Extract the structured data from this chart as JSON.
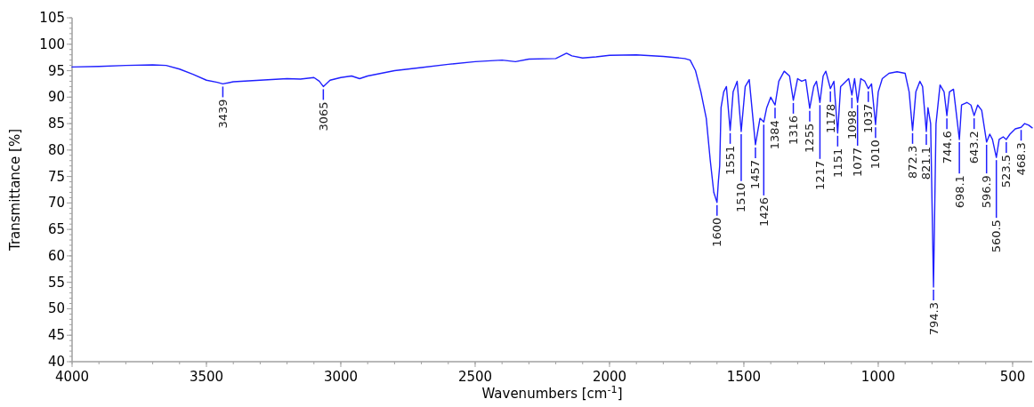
{
  "chart_data": {
    "type": "line",
    "xlabel": "Wavenumbers [cm$^{-1}$]",
    "ylabel": "Transmittance [%]",
    "xlim": [
      4000,
      427
    ],
    "xticks": [
      4000,
      3500,
      3000,
      2500,
      2000,
      1500,
      1000,
      500
    ],
    "ylim": [
      40,
      105
    ],
    "yticks": [
      40,
      45,
      50,
      55,
      60,
      65,
      70,
      75,
      80,
      85,
      90,
      95,
      100,
      105
    ],
    "grid": false,
    "marker": "none",
    "line_style": "solid",
    "series": [
      {
        "color": "#1f1fff",
        "x": [
          4000,
          3900,
          3800,
          3700,
          3650,
          3600,
          3550,
          3500,
          3460,
          3439,
          3400,
          3300,
          3200,
          3150,
          3100,
          3080,
          3065,
          3040,
          3000,
          2960,
          2930,
          2900,
          2800,
          2700,
          2600,
          2500,
          2400,
          2350,
          2300,
          2200,
          2160,
          2140,
          2100,
          2050,
          2000,
          1900,
          1800,
          1720,
          1700,
          1680,
          1660,
          1640,
          1625,
          1612,
          1600,
          1595,
          1590,
          1585,
          1575,
          1565,
          1551,
          1540,
          1525,
          1510,
          1495,
          1480,
          1457,
          1440,
          1426,
          1415,
          1400,
          1384,
          1370,
          1350,
          1330,
          1316,
          1300,
          1285,
          1270,
          1255,
          1240,
          1230,
          1217,
          1205,
          1195,
          1178,
          1165,
          1151,
          1140,
          1120,
          1110,
          1098,
          1088,
          1077,
          1065,
          1050,
          1037,
          1025,
          1010,
          1000,
          985,
          960,
          930,
          900,
          885,
          872.3,
          860,
          845,
          835,
          821.1,
          815,
          805,
          794.3,
          785,
          770,
          755,
          744.6,
          735,
          720,
          698.1,
          690,
          670,
          655,
          643.2,
          630,
          615,
          596.9,
          585,
          575,
          560.5,
          550,
          535,
          523.5,
          510,
          490,
          468.3,
          455,
          440,
          427
        ],
        "values": [
          95.7,
          95.8,
          96.0,
          96.1,
          96.0,
          95.3,
          94.3,
          93.2,
          92.8,
          92.5,
          92.9,
          93.2,
          93.5,
          93.4,
          93.7,
          93.0,
          92.0,
          93.2,
          93.7,
          94.0,
          93.5,
          94.0,
          95.0,
          95.6,
          96.2,
          96.7,
          97.0,
          96.7,
          97.2,
          97.3,
          98.3,
          97.8,
          97.4,
          97.6,
          97.9,
          98.0,
          97.7,
          97.3,
          97.0,
          95,
          91,
          86,
          78,
          72,
          70.1,
          74,
          77,
          88,
          91,
          92,
          83.7,
          91,
          93,
          83.5,
          92,
          93.3,
          81.0,
          86,
          85.3,
          88,
          90,
          88.5,
          93,
          94.9,
          94,
          89.4,
          93.5,
          93,
          93.3,
          87.9,
          92,
          93,
          89.0,
          94,
          94.9,
          91.6,
          93,
          83.2,
          92,
          93,
          93.5,
          90.4,
          93.5,
          89.0,
          93.5,
          93,
          91.6,
          92.5,
          84.8,
          91,
          93.5,
          94.5,
          94.8,
          94.5,
          91,
          83.7,
          91,
          93,
          92,
          83.5,
          88,
          85,
          54.1,
          85,
          92.3,
          91,
          86.5,
          91,
          91.5,
          82.0,
          88.5,
          89,
          88.5,
          86.5,
          88.5,
          87.5,
          81.5,
          83,
          82,
          78.6,
          82,
          82.5,
          82.0,
          83,
          84,
          84.3,
          85,
          84.7,
          84.2
        ]
      }
    ],
    "annotations": [
      {
        "text": "3439",
        "x": 3439,
        "y": 92.5
      },
      {
        "text": "3065",
        "x": 3065,
        "y": 92.0
      },
      {
        "text": "1600",
        "x": 1600,
        "y": 70.1
      },
      {
        "text": "1551",
        "x": 1551,
        "y": 83.7
      },
      {
        "text": "1510",
        "x": 1510,
        "y": 83.5
      },
      {
        "text": "1457",
        "x": 1457,
        "y": 81.0
      },
      {
        "text": "1426",
        "x": 1426,
        "y": 85.3
      },
      {
        "text": "1384",
        "x": 1384,
        "y": 88.5
      },
      {
        "text": "1316",
        "x": 1316,
        "y": 89.4
      },
      {
        "text": "1255",
        "x": 1255,
        "y": 87.9
      },
      {
        "text": "1217",
        "x": 1217,
        "y": 89.0
      },
      {
        "text": "1178",
        "x": 1178,
        "y": 91.6
      },
      {
        "text": "1151",
        "x": 1151,
        "y": 83.2
      },
      {
        "text": "1098",
        "x": 1098,
        "y": 90.4
      },
      {
        "text": "1077",
        "x": 1077,
        "y": 89.0
      },
      {
        "text": "1037",
        "x": 1037,
        "y": 91.6
      },
      {
        "text": "1010",
        "x": 1010,
        "y": 84.8
      },
      {
        "text": "872.3",
        "x": 872.3,
        "y": 83.7
      },
      {
        "text": "821.1",
        "x": 821.1,
        "y": 83.5
      },
      {
        "text": "794.3",
        "x": 794.3,
        "y": 54.1
      },
      {
        "text": "744.6",
        "x": 744.6,
        "y": 86.5
      },
      {
        "text": "698.1",
        "x": 698.1,
        "y": 82.0
      },
      {
        "text": "643.2",
        "x": 643.2,
        "y": 86.5
      },
      {
        "text": "596.9",
        "x": 596.9,
        "y": 81.5
      },
      {
        "text": "560.5",
        "x": 560.5,
        "y": 78.6
      },
      {
        "text": "523.5",
        "x": 523.5,
        "y": 82.0
      },
      {
        "text": "468.3",
        "x": 468.3,
        "y": 84.3
      }
    ]
  }
}
